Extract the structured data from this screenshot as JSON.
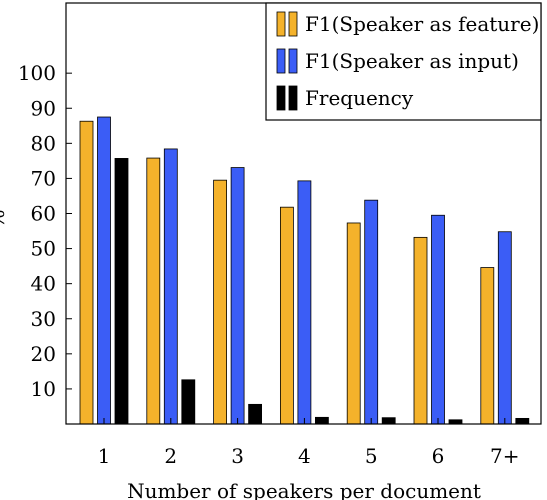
{
  "chart_data": {
    "type": "bar",
    "title": "",
    "xlabel": "Number of speakers per document",
    "ylabel": "%",
    "ylim": [
      0,
      120
    ],
    "yticks": [
      10,
      20,
      30,
      40,
      50,
      60,
      70,
      80,
      90,
      100
    ],
    "grid": false,
    "legend_position": "top-right",
    "categories": [
      "1",
      "2",
      "3",
      "4",
      "5",
      "6",
      "7+"
    ],
    "series": [
      {
        "name": "F1(Speaker as feature)",
        "color": "#f4b22b",
        "values": [
          86.3,
          75.8,
          69.5,
          61.8,
          57.3,
          53.2,
          44.6
        ]
      },
      {
        "name": "F1(Speaker as input)",
        "color": "#3b5df6",
        "values": [
          87.5,
          78.4,
          73.1,
          69.3,
          63.8,
          59.5,
          54.8
        ]
      },
      {
        "name": "Frequency",
        "color": "#000000",
        "values": [
          75.7,
          12.6,
          5.6,
          1.9,
          1.8,
          1.2,
          1.6
        ]
      }
    ]
  }
}
